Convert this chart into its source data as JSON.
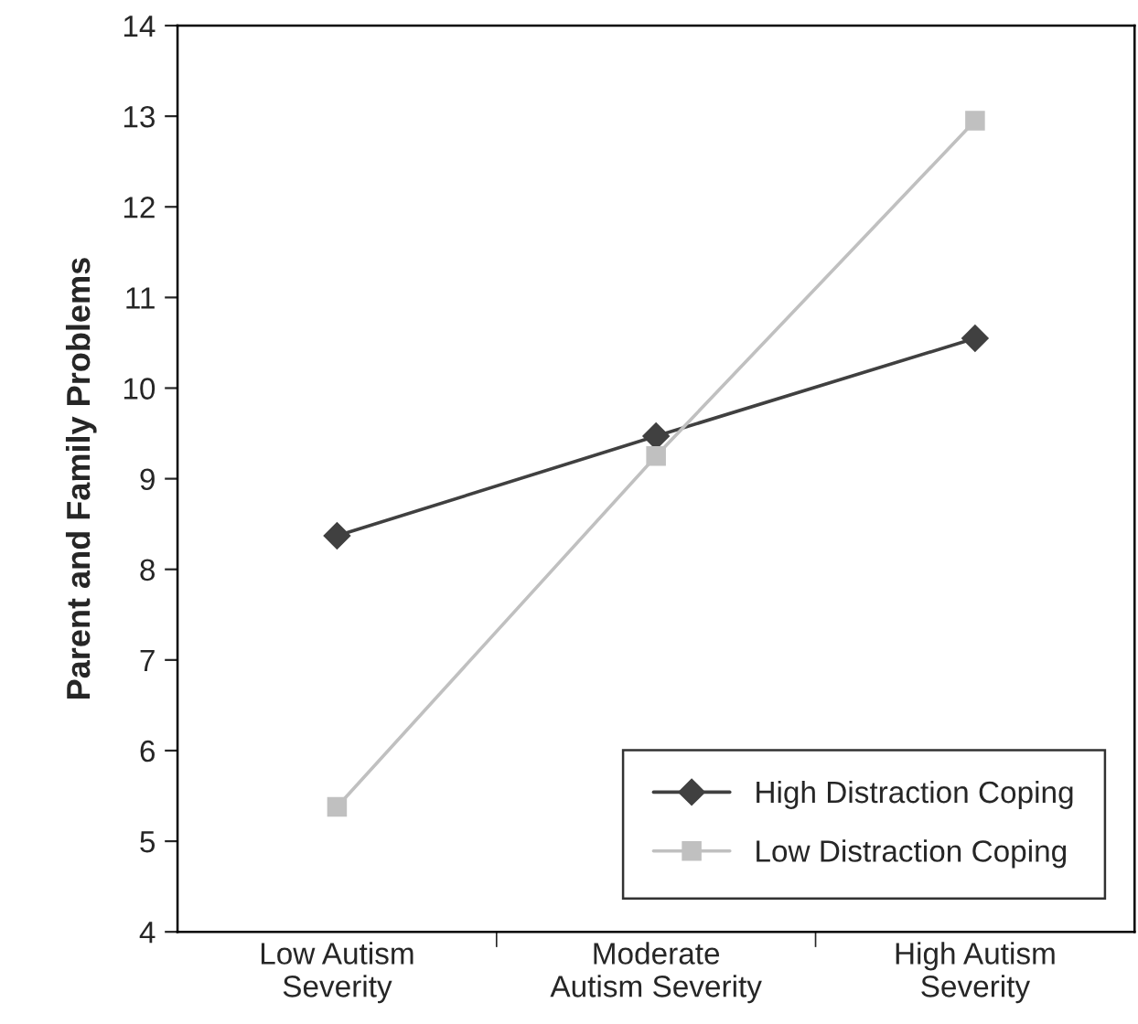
{
  "chart_data": {
    "type": "line",
    "ylabel": "Parent and Family Problems",
    "categories": [
      "Low Autism\nSeverity",
      "Moderate\nAutism Severity",
      "High Autism\nSeverity"
    ],
    "series": [
      {
        "name": "High Distraction Coping",
        "color": "#404040",
        "marker": "diamond",
        "values": [
          8.37,
          9.47,
          10.55
        ]
      },
      {
        "name": "Low Distraction Coping",
        "color": "#c0c0c0",
        "marker": "square",
        "values": [
          5.38,
          9.25,
          12.95
        ]
      }
    ],
    "ylim": [
      4,
      14
    ],
    "yticks": [
      4,
      5,
      6,
      7,
      8,
      9,
      10,
      11,
      12,
      13,
      14
    ],
    "grid": false,
    "legend": "bottom right"
  }
}
